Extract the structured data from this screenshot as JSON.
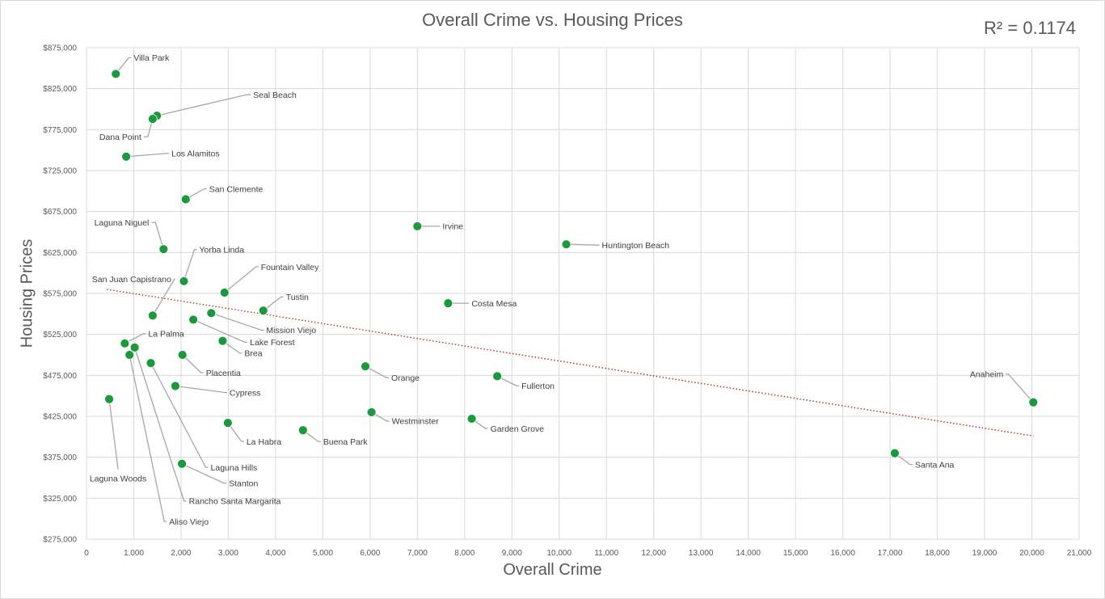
{
  "chart_data": {
    "type": "scatter",
    "title": "Overall Crime vs. Housing Prices",
    "annotation": "R² = 0.1174",
    "xlabel": "Overall Crime",
    "ylabel": "Housing Prices",
    "xlim": [
      0,
      21000
    ],
    "ylim": [
      275000,
      875000
    ],
    "x_ticks": [
      "0",
      "1,000",
      "2,000",
      "3,000",
      "4,000",
      "5,000",
      "6,000",
      "7,000",
      "8,000",
      "9,000",
      "10,000",
      "11,000",
      "12,000",
      "13,000",
      "14,000",
      "15,000",
      "16,000",
      "17,000",
      "18,000",
      "19,000",
      "20,000",
      "21,000"
    ],
    "y_ticks": [
      "$275,000",
      "$325,000",
      "$375,000",
      "$425,000",
      "$475,000",
      "$525,000",
      "$575,000",
      "$625,000",
      "$675,000",
      "$725,000",
      "$775,000",
      "$825,000",
      "$875,000"
    ],
    "grid": true,
    "marker_color": "#1a9a3c",
    "trendline": {
      "style": "dotted",
      "color": "#b03a2e",
      "x": [
        430,
        20030
      ],
      "y": [
        580000,
        401000
      ]
    },
    "points": [
      {
        "name": "Villa Park",
        "x": 620,
        "y": 843000
      },
      {
        "name": "Seal Beach",
        "x": 1490,
        "y": 792000
      },
      {
        "name": "Dana Point",
        "x": 1400,
        "y": 788000
      },
      {
        "name": "Los Alamitos",
        "x": 840,
        "y": 742000
      },
      {
        "name": "San Clemente",
        "x": 2100,
        "y": 690000
      },
      {
        "name": "Laguna Niguel",
        "x": 1630,
        "y": 629000
      },
      {
        "name": "Yorba Linda",
        "x": 2060,
        "y": 590000
      },
      {
        "name": "Fountain Valley",
        "x": 2920,
        "y": 576000
      },
      {
        "name": "Tustin",
        "x": 3740,
        "y": 554000
      },
      {
        "name": "San Juan Capistrano",
        "x": 1400,
        "y": 548000
      },
      {
        "name": "Mission Viejo",
        "x": 2640,
        "y": 551000
      },
      {
        "name": "Lake Forest",
        "x": 2260,
        "y": 543000
      },
      {
        "name": "Brea",
        "x": 2880,
        "y": 517000
      },
      {
        "name": "La Palma",
        "x": 810,
        "y": 514000
      },
      {
        "name": "Placentia",
        "x": 2030,
        "y": 500000
      },
      {
        "name": "Laguna Hills",
        "x": 1360,
        "y": 490000
      },
      {
        "name": "Cypress",
        "x": 1880,
        "y": 462000
      },
      {
        "name": "Laguna Woods",
        "x": 480,
        "y": 446000
      },
      {
        "name": "Stanton",
        "x": 2020,
        "y": 367000
      },
      {
        "name": "Rancho Santa Margarita",
        "x": 1020,
        "y": 509000
      },
      {
        "name": "Aliso Viejo",
        "x": 910,
        "y": 500000
      },
      {
        "name": "La Habra",
        "x": 2990,
        "y": 417000
      },
      {
        "name": "Buena Park",
        "x": 4580,
        "y": 408000
      },
      {
        "name": "Orange",
        "x": 5900,
        "y": 486000
      },
      {
        "name": "Westminster",
        "x": 6030,
        "y": 430000
      },
      {
        "name": "Irvine",
        "x": 7000,
        "y": 657000
      },
      {
        "name": "Costa Mesa",
        "x": 7650,
        "y": 563000
      },
      {
        "name": "Garden Grove",
        "x": 8150,
        "y": 422000
      },
      {
        "name": "Fullerton",
        "x": 8690,
        "y": 474000
      },
      {
        "name": "Huntington Beach",
        "x": 10150,
        "y": 635000
      },
      {
        "name": "Santa Ana",
        "x": 17100,
        "y": 380000
      },
      {
        "name": "Anaheim",
        "x": 20030,
        "y": 442000
      }
    ]
  }
}
